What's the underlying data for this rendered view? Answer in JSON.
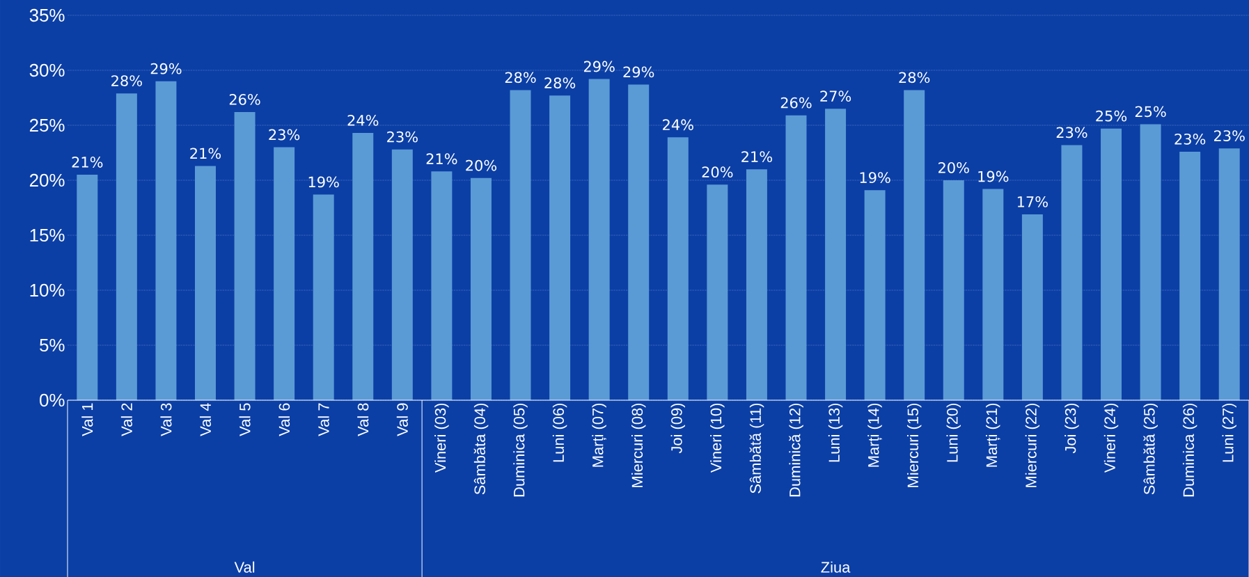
{
  "chart_data": {
    "type": "bar",
    "categories": [
      "Val 1",
      "Val 2",
      "Val 3",
      "Val 4",
      "Val 5",
      "Val 6",
      "Val 7",
      "Val 8",
      "Val 9",
      "Vineri (03)",
      "Sâmbăta (04)",
      "Duminica (05)",
      "Luni (06)",
      "Marți (07)",
      "Miercuri (08)",
      "Joi (09)",
      "Vineri (10)",
      "Sâmbătă (11)",
      "Duminică (12)",
      "Luni (13)",
      "Marți (14)",
      "Miercuri (15)",
      "Luni (20)",
      "Marți (21)",
      "Miercuri (22)",
      "Joi (23)",
      "Vineri (24)",
      "Sâmbătă (25)",
      "Duminica (26)",
      "Luni (27)"
    ],
    "values": [
      20.5,
      27.9,
      29.0,
      21.3,
      26.2,
      23.0,
      18.7,
      24.3,
      22.8,
      20.8,
      20.2,
      28.2,
      27.7,
      29.2,
      28.7,
      23.9,
      19.6,
      21.0,
      25.9,
      26.5,
      19.1,
      28.2,
      20.0,
      19.2,
      16.9,
      23.2,
      24.7,
      25.1,
      22.6,
      22.9
    ],
    "value_labels": [
      "21%",
      "28%",
      "29%",
      "21%",
      "26%",
      "23%",
      "19%",
      "24%",
      "23%",
      "21%",
      "20%",
      "28%",
      "28%",
      "29%",
      "29%",
      "24%",
      "20%",
      "21%",
      "26%",
      "27%",
      "19%",
      "28%",
      "20%",
      "19%",
      "17%",
      "23%",
      "25%",
      "25%",
      "23%",
      "23%"
    ],
    "color": "#5b9bd5",
    "ylim": [
      0,
      35
    ],
    "yticks": [
      {
        "value": 0,
        "label": "0%"
      },
      {
        "value": 5,
        "label": "5%"
      },
      {
        "value": 10,
        "label": "10%"
      },
      {
        "value": 15,
        "label": "15%"
      },
      {
        "value": 20,
        "label": "20%"
      },
      {
        "value": 25,
        "label": "25%"
      },
      {
        "value": 30,
        "label": "30%"
      },
      {
        "value": 35,
        "label": "35%"
      }
    ],
    "grid": "y",
    "annotations": [
      "Val",
      "Ziua"
    ]
  }
}
